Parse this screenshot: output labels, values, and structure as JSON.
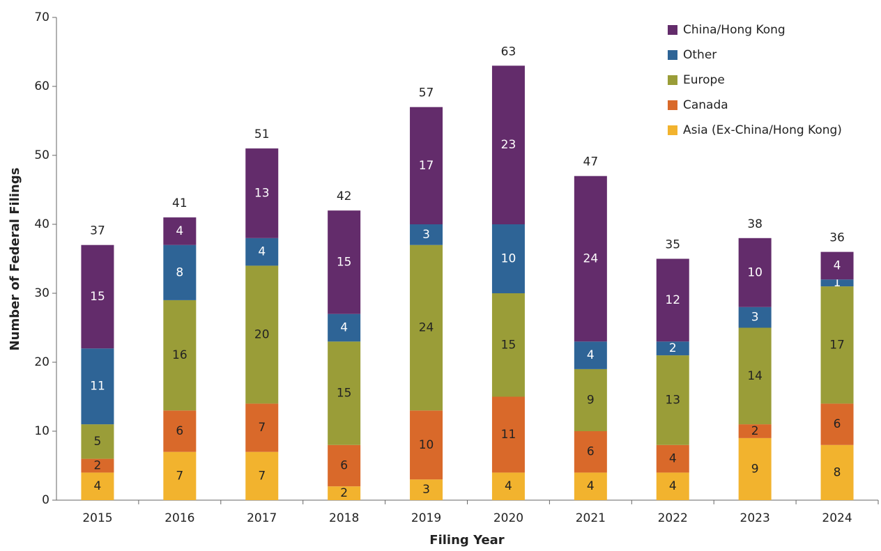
{
  "chart_data": {
    "type": "stacked-bar",
    "x_label": "Filing Year",
    "y_label": "Number of Federal Filings",
    "categories": [
      "2015",
      "2016",
      "2017",
      "2018",
      "2019",
      "2020",
      "2021",
      "2022",
      "2023",
      "2024"
    ],
    "series": [
      {
        "name": "Asia (Ex-China/Hong Kong)",
        "color": "#f2b32e",
        "values": [
          4,
          7,
          7,
          2,
          3,
          4,
          4,
          4,
          9,
          8
        ]
      },
      {
        "name": "Canada",
        "color": "#d9692a",
        "values": [
          2,
          6,
          7,
          6,
          10,
          11,
          6,
          4,
          2,
          6
        ]
      },
      {
        "name": "Europe",
        "color": "#9a9d38",
        "values": [
          5,
          16,
          20,
          15,
          24,
          15,
          9,
          13,
          14,
          17
        ]
      },
      {
        "name": "Other",
        "color": "#2e6496",
        "values": [
          11,
          8,
          4,
          4,
          3,
          10,
          4,
          2,
          3,
          1
        ]
      },
      {
        "name": "China/Hong Kong",
        "color": "#632c6b",
        "values": [
          15,
          4,
          13,
          15,
          17,
          23,
          24,
          12,
          10,
          4
        ]
      }
    ],
    "totals": [
      37,
      41,
      51,
      42,
      57,
      63,
      47,
      35,
      38,
      36
    ],
    "ylim": [
      0,
      70
    ],
    "yticks": [
      0,
      10,
      20,
      30,
      40,
      50,
      60,
      70
    ],
    "grid": false,
    "legend": "upper right"
  }
}
